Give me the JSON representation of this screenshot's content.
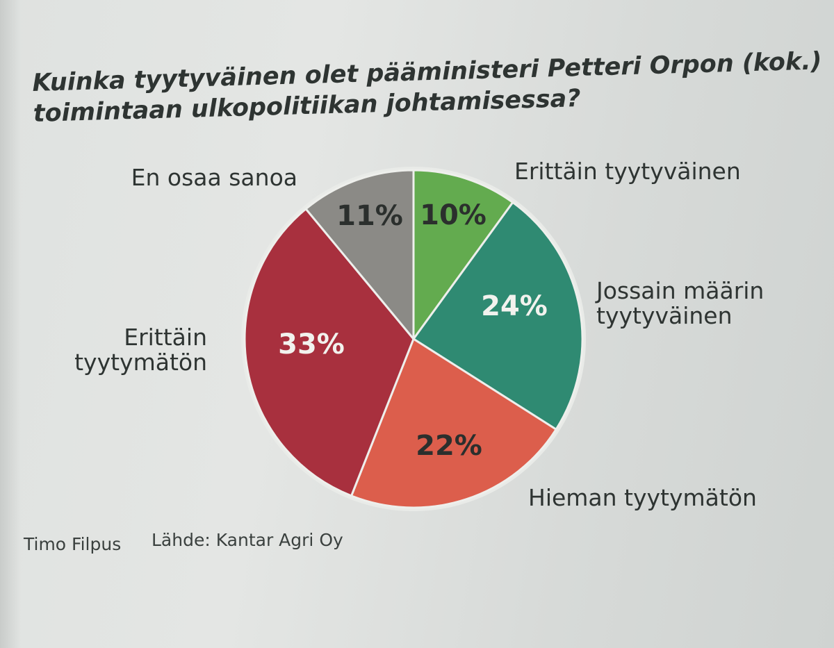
{
  "chart_data": {
    "type": "pie",
    "title": "Kuinka tyytyväinen olet pääministeri Petteri Orpon (kok.) toimintaan ulkopolitiikan johtamisessa?",
    "title_lines": [
      "Kuinka tyytyväinen olet pääministeri Petteri Orpon (kok.)",
      "toimintaan ulkopolitiikan johtamisessa?"
    ],
    "slices": [
      {
        "label": "Erittäin tyytyväinen",
        "label_lines": [
          "Erittäin tyytyväinen"
        ],
        "value": 10,
        "value_label": "10%",
        "color": "#63ab4f",
        "text_color": "#2b2f2d"
      },
      {
        "label": "Jossain määrin tyytyväinen",
        "label_lines": [
          "Jossain määrin",
          "tyytyväinen"
        ],
        "value": 24,
        "value_label": "24%",
        "color": "#2f8a72",
        "text_color": "#f2f2ee"
      },
      {
        "label": "Hieman tyytymätön",
        "label_lines": [
          "Hieman tyytymätön"
        ],
        "value": 22,
        "value_label": "22%",
        "color": "#dc5e4c",
        "text_color": "#2b2f2d"
      },
      {
        "label": "Erittäin tyytymätön",
        "label_lines": [
          "Erittäin",
          "tyytymätön"
        ],
        "value": 33,
        "value_label": "33%",
        "color": "#a8303e",
        "text_color": "#f2f2ee"
      },
      {
        "label": "En osaa sanoa",
        "label_lines": [
          "En osaa sanoa"
        ],
        "value": 11,
        "value_label": "11%",
        "color": "#8b8a86",
        "text_color": "#2b2f2d"
      }
    ],
    "start": "12 o'clock",
    "direction": "clockwise",
    "legend": "none"
  },
  "credits": {
    "author": "Timo Filpus",
    "source": "Lähde: Kantar Agri Oy"
  }
}
